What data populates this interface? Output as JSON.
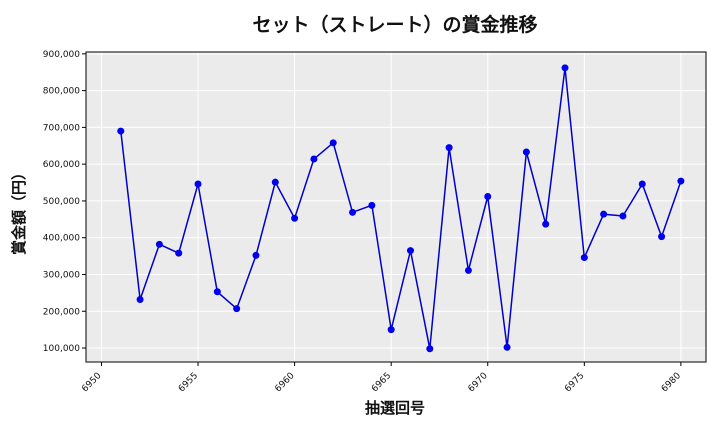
{
  "chart_data": {
    "type": "line",
    "title": "セット（ストレート）の賞金推移",
    "xlabel": "抽選回号",
    "ylabel": "賞金額（円）",
    "xlim": [
      6949.2,
      6981.3
    ],
    "ylim": [
      62000,
      905000
    ],
    "xticks": [
      6950,
      6955,
      6960,
      6965,
      6970,
      6975,
      6980
    ],
    "xtick_labels": [
      "6950",
      "6955",
      "6960",
      "6965",
      "6970",
      "6975",
      "6980"
    ],
    "yticks": [
      100000,
      200000,
      300000,
      400000,
      500000,
      600000,
      700000,
      800000,
      900000
    ],
    "ytick_labels": [
      "100,000",
      "200,000",
      "300,000",
      "400,000",
      "500,000",
      "600,000",
      "700,000",
      "800,000",
      "900,000"
    ],
    "grid": true,
    "series": [
      {
        "color": "#0000cc",
        "marker_color": "#0000ee",
        "x": [
          6951,
          6952,
          6953,
          6954,
          6955,
          6956,
          6957,
          6958,
          6959,
          6960,
          6961,
          6962,
          6963,
          6964,
          6965,
          6966,
          6967,
          6968,
          6969,
          6970,
          6971,
          6972,
          6973,
          6974,
          6975,
          6976,
          6977,
          6978,
          6979,
          6980
        ],
        "y": [
          690000,
          232000,
          382000,
          358000,
          546000,
          253000,
          207000,
          352000,
          551000,
          453000,
          614000,
          658000,
          469000,
          488000,
          150000,
          365000,
          98000,
          645000,
          311000,
          512000,
          102000,
          633000,
          437000,
          862000,
          346000,
          464000,
          459000,
          546000,
          403000,
          554000
        ]
      }
    ],
    "colors": {
      "plot_bg": "#ebebeb",
      "grid": "#ffffff"
    }
  }
}
